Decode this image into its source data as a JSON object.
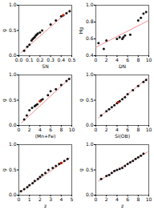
{
  "chart_data": [
    {
      "type": "scatter",
      "xlabel": "SN",
      "ylabel": "g",
      "xlim": [
        0.0,
        0.5
      ],
      "ylim": [
        0.0,
        1.0
      ],
      "xticks": [
        {
          "value": 0.0,
          "label": "0.0"
        },
        0.1,
        0.2,
        0.3,
        0.4,
        0.5
      ],
      "yticks": [
        {
          "value": 0.0,
          "label": "0.0"
        },
        0.5,
        {
          "value": 1.0,
          "label": "1.0"
        }
      ],
      "series": [
        {
          "type": "line",
          "color": "#f09090",
          "x": [
            0.02,
            0.49
          ],
          "values": [
            0.06,
            0.92
          ]
        },
        {
          "type": "scatter",
          "color": "#111111",
          "x": [
            0.05,
            0.08,
            0.1,
            0.12,
            0.13,
            0.14,
            0.15,
            0.16,
            0.17,
            0.18,
            0.2,
            0.22,
            0.3,
            0.35,
            0.4,
            0.42,
            0.45,
            0.48
          ],
          "values": [
            0.1,
            0.18,
            0.22,
            0.3,
            0.33,
            0.35,
            0.37,
            0.4,
            0.42,
            0.44,
            0.46,
            0.5,
            0.62,
            0.7,
            0.78,
            0.8,
            0.84,
            0.88
          ]
        },
        {
          "type": "scatter",
          "color": "#cc2200",
          "x": [
            0.42
          ],
          "values": [
            0.8
          ]
        }
      ]
    },
    {
      "type": "scatter",
      "xlabel": "DN",
      "ylabel": "Hg",
      "xlim": [
        0.0,
        10.0
      ],
      "ylim": [
        0.4,
        1.0
      ],
      "xticks": [
        0,
        2,
        4,
        6,
        8,
        10
      ],
      "yticks": [
        0.4,
        0.6,
        0.8,
        {
          "value": 1.0,
          "label": "1.0"
        }
      ],
      "series": [
        {
          "type": "line",
          "color": "#f09090",
          "x": [
            0.0,
            10.0
          ],
          "values": [
            0.5,
            0.82
          ]
        },
        {
          "type": "scatter",
          "color": "#111111",
          "x": [
            0.5,
            1.5,
            2.0,
            4.0,
            4.5,
            5.0,
            5.2,
            5.5,
            6.5,
            8.0,
            8.5,
            9.0,
            9.5
          ],
          "values": [
            0.55,
            0.48,
            0.58,
            0.6,
            0.62,
            0.6,
            0.62,
            0.64,
            0.65,
            0.82,
            0.85,
            0.9,
            0.92
          ]
        }
      ]
    },
    {
      "type": "scatter",
      "xlabel": "(Mn+Fe)",
      "ylabel": "g",
      "xlim": [
        0,
        10
      ],
      "ylim": [
        0.0,
        1.0
      ],
      "xticks": [
        0,
        2,
        4,
        6,
        8,
        10
      ],
      "yticks": [
        {
          "value": 0.0,
          "label": "0.0"
        },
        0.5,
        {
          "value": 1.0,
          "label": "1.0"
        }
      ],
      "series": [
        {
          "type": "line",
          "color": "#f09090",
          "x": [
            0.5,
            9.8
          ],
          "values": [
            0.05,
            0.95
          ]
        },
        {
          "type": "scatter",
          "color": "#111111",
          "x": [
            1.0,
            1.5,
            2.0,
            2.5,
            3.0,
            3.2,
            3.5,
            4.0,
            4.2,
            4.5,
            5.5,
            6.0,
            7.0,
            8.0,
            9.0,
            9.5
          ],
          "values": [
            0.12,
            0.2,
            0.3,
            0.35,
            0.38,
            0.4,
            0.42,
            0.48,
            0.5,
            0.52,
            0.6,
            0.68,
            0.72,
            0.8,
            0.88,
            0.92
          ]
        },
        {
          "type": "scatter",
          "color": "#cc2200",
          "x": [
            4.0
          ],
          "values": [
            0.48
          ]
        }
      ]
    },
    {
      "type": "scatter",
      "xlabel": "Si(OB)",
      "ylabel": "g",
      "xlim": [
        0,
        10
      ],
      "ylim": [
        0.0,
        1.0
      ],
      "xticks": [
        0,
        2,
        4,
        6,
        8,
        10
      ],
      "yticks": [
        {
          "value": 0.0,
          "label": "0.0"
        },
        0.5,
        {
          "value": 1.0,
          "label": "1.0"
        }
      ],
      "series": [
        {
          "type": "line",
          "color": "#f09090",
          "x": [
            0.5,
            9.8
          ],
          "values": [
            0.15,
            0.94
          ]
        },
        {
          "type": "scatter",
          "color": "#111111",
          "x": [
            1.0,
            2.0,
            2.5,
            3.0,
            3.5,
            4.0,
            4.2,
            4.5,
            5.0,
            5.5,
            6.0,
            7.0,
            8.0,
            9.0,
            9.5
          ],
          "values": [
            0.2,
            0.28,
            0.32,
            0.36,
            0.4,
            0.44,
            0.46,
            0.48,
            0.52,
            0.56,
            0.62,
            0.7,
            0.78,
            0.86,
            0.9
          ]
        },
        {
          "type": "scatter",
          "color": "#cc2200",
          "x": [
            4.2
          ],
          "values": [
            0.46
          ]
        }
      ]
    },
    {
      "type": "scatter",
      "xlabel": "z",
      "ylabel": "g",
      "xlim": [
        0,
        5
      ],
      "ylim": [
        0.0,
        1.0
      ],
      "xticks": [
        0,
        1,
        2,
        3,
        4,
        5
      ],
      "yticks": [
        {
          "value": 0.0,
          "label": "0.0"
        },
        0.5,
        {
          "value": 1.0,
          "label": "1.0"
        }
      ],
      "series": [
        {
          "type": "line",
          "color": "#f09090",
          "x": [
            0.1,
            4.8
          ],
          "values": [
            0.06,
            0.74
          ]
        },
        {
          "type": "scatter",
          "color": "#111111",
          "x": [
            0.2,
            0.5,
            0.8,
            1.0,
            1.3,
            1.5,
            1.8,
            2.0,
            2.2,
            2.5,
            2.8,
            3.2,
            3.5,
            3.8,
            4.0,
            4.3,
            4.6
          ],
          "values": [
            0.08,
            0.12,
            0.16,
            0.2,
            0.24,
            0.28,
            0.32,
            0.36,
            0.4,
            0.44,
            0.5,
            0.54,
            0.58,
            0.62,
            0.64,
            0.68,
            0.72
          ]
        },
        {
          "type": "scatter",
          "color": "#cc2200",
          "x": [
            4.0
          ],
          "values": [
            0.64
          ]
        }
      ]
    },
    {
      "type": "scatter",
      "xlabel": "z",
      "ylabel": "g",
      "xlim": [
        0,
        10
      ],
      "ylim": [
        0.0,
        1.0
      ],
      "xticks": [
        0,
        2,
        4,
        6,
        8,
        10
      ],
      "yticks": [
        {
          "value": 0.0,
          "label": "0.0"
        },
        0.5,
        {
          "value": 1.0,
          "label": "1.0"
        }
      ],
      "series": [
        {
          "type": "line",
          "color": "#f09090",
          "x": [
            0.5,
            9.8
          ],
          "values": [
            0.28,
            0.86
          ]
        },
        {
          "type": "scatter",
          "color": "#111111",
          "x": [
            1.0,
            2.0,
            2.5,
            3.0,
            3.5,
            4.0,
            4.5,
            5.0,
            5.5,
            6.0,
            6.5,
            7.0,
            7.5,
            8.0,
            8.5,
            9.0
          ],
          "values": [
            0.32,
            0.38,
            0.4,
            0.44,
            0.48,
            0.5,
            0.52,
            0.54,
            0.58,
            0.62,
            0.65,
            0.68,
            0.72,
            0.75,
            0.78,
            0.82
          ]
        }
      ]
    }
  ]
}
